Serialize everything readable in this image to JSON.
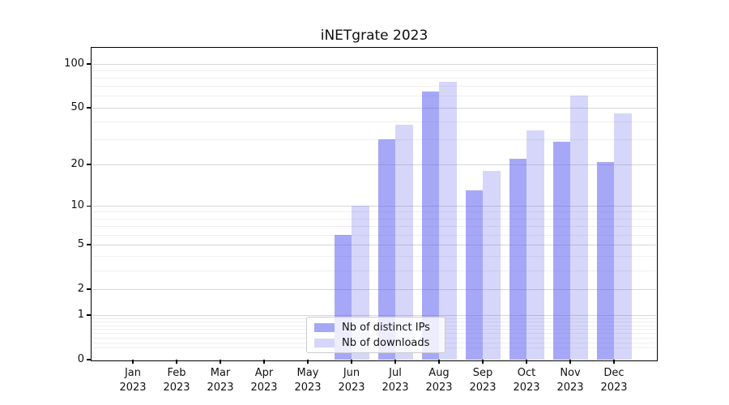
{
  "title": "iNETgrate 2023",
  "chart_data": {
    "type": "bar",
    "title": "iNETgrate 2023",
    "x_categories": [
      {
        "month": "Jan",
        "year": "2023"
      },
      {
        "month": "Feb",
        "year": "2023"
      },
      {
        "month": "Mar",
        "year": "2023"
      },
      {
        "month": "Apr",
        "year": "2023"
      },
      {
        "month": "May",
        "year": "2023"
      },
      {
        "month": "Jun",
        "year": "2023"
      },
      {
        "month": "Jul",
        "year": "2023"
      },
      {
        "month": "Aug",
        "year": "2023"
      },
      {
        "month": "Sep",
        "year": "2023"
      },
      {
        "month": "Oct",
        "year": "2023"
      },
      {
        "month": "Nov",
        "year": "2023"
      },
      {
        "month": "Dec",
        "year": "2023"
      }
    ],
    "series": [
      {
        "name": "Nb of distinct IPs",
        "color": "rgba(80,80,240,0.5)",
        "values": [
          0,
          0,
          0,
          0,
          0,
          6,
          30,
          65,
          13,
          22,
          29,
          21
        ]
      },
      {
        "name": "Nb of downloads",
        "color": "rgba(85,85,240,0.24)",
        "values": [
          0,
          0,
          0,
          0,
          0,
          10,
          38,
          75,
          18,
          35,
          61,
          46
        ]
      }
    ],
    "y_axis": {
      "scale": "log1p",
      "ticks": [
        100,
        50,
        20,
        10,
        5,
        2,
        1,
        0
      ],
      "range": [
        0,
        127
      ]
    },
    "grid": true,
    "legend": {
      "position": "lower center",
      "labels": [
        "Nb of distinct IPs",
        "Nb of downloads"
      ]
    }
  }
}
